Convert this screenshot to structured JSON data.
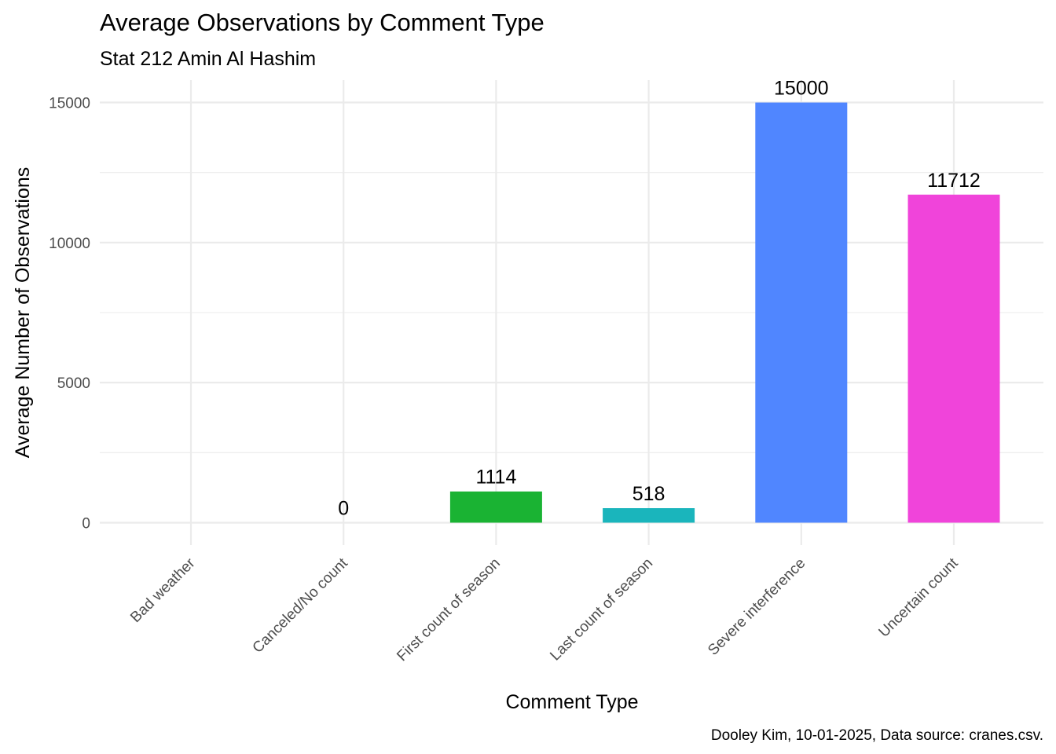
{
  "chart_data": {
    "type": "bar",
    "title": "Average Observations by Comment Type",
    "subtitle": "Stat 212 Amin Al Hashim",
    "xlabel": "Comment Type",
    "ylabel": "Average Number of Observations",
    "caption": "Dooley Kim, 10-01-2025, Data source: cranes.csv.",
    "categories": [
      "Bad weather",
      "Canceled/No count",
      "First count of season",
      "Last count of season",
      "Severe interference",
      "Uncertain count"
    ],
    "values": [
      null,
      0,
      1114,
      518,
      15000,
      11712
    ],
    "data_labels": [
      "",
      "0",
      "1114",
      "518",
      "15000",
      "11712"
    ],
    "colors": [
      "#F8766D",
      "#B79F00",
      "#1AB333",
      "#1AB5BC",
      "#5086FF",
      "#F044DA"
    ],
    "ylim": [
      -800,
      15800
    ],
    "yticks": [
      0,
      5000,
      10000,
      15000
    ],
    "ytick_labels": [
      "0",
      "5000",
      "10000",
      "15000"
    ],
    "grid": true,
    "legend": "none"
  }
}
